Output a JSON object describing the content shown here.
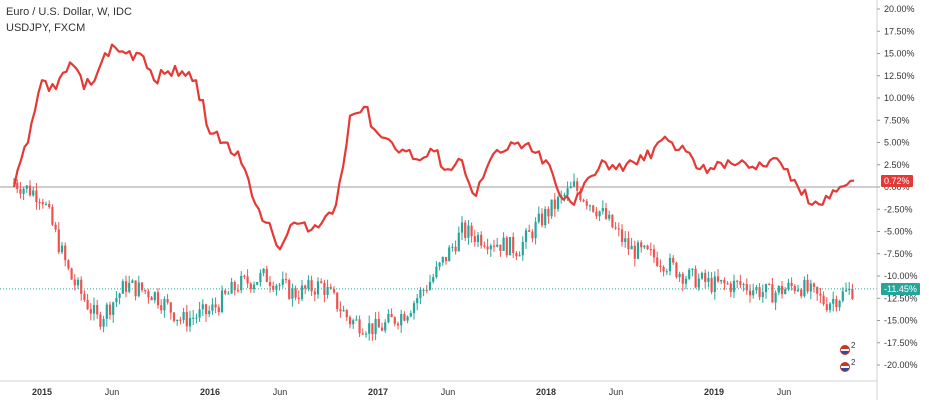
{
  "legend": {
    "series1": "Euro / U.S. Dollar, W, IDC",
    "series2": "USDJPY, FXCM"
  },
  "badges": {
    "series1_value": "0.72%",
    "series2_value": "-11.45%",
    "series1_color": "#e53935",
    "series2_color": "#26a69a"
  },
  "colors": {
    "up": "#26a69a",
    "down": "#ef5350",
    "line": "#e53935",
    "axis_text": "#333333",
    "grid": "#e9e9e9"
  },
  "markers": [
    {
      "icon": "us-flag-icon",
      "count": "2"
    },
    {
      "icon": "us-flag-icon",
      "count": "2"
    }
  ],
  "chart_data": {
    "type": "line",
    "y_axis_labels": [
      "20.00%",
      "17.50%",
      "15.00%",
      "12.50%",
      "10.00%",
      "7.50%",
      "5.00%",
      "2.50%",
      "0.00%",
      "-2.50%",
      "-5.00%",
      "-7.50%",
      "-10.00%",
      "-12.50%",
      "-15.00%",
      "-17.50%",
      "-20.00%"
    ],
    "x_axis_labels": [
      "2015",
      "Jun",
      "2016",
      "Jun",
      "2017",
      "Jun",
      "2018",
      "Jun",
      "2019",
      "Jun"
    ],
    "ylim": [
      -21,
      21
    ],
    "grid": false,
    "series": [
      {
        "name": "Euro / U.S. Dollar, W, IDC",
        "style": "candlestick",
        "x": [
          "2014-11",
          "2015-01",
          "2015-03",
          "2015-05",
          "2015-07",
          "2015-09",
          "2015-11",
          "2016-01",
          "2016-03",
          "2016-05",
          "2016-07",
          "2016-09",
          "2016-11",
          "2017-01",
          "2017-03",
          "2017-05",
          "2017-07",
          "2017-09",
          "2017-11",
          "2018-01",
          "2018-03",
          "2018-05",
          "2018-07",
          "2018-09",
          "2018-11",
          "2019-01",
          "2019-03",
          "2019-05",
          "2019-07",
          "2019-09",
          "2019-11"
        ],
        "values": [
          0.5,
          -1,
          -10,
          -15,
          -11,
          -12,
          -15,
          -14,
          -11,
          -10,
          -12,
          -11,
          -15,
          -16,
          -14,
          -10,
          -5,
          -6,
          -7,
          -3,
          0,
          -3,
          -7,
          -8,
          -10,
          -11,
          -11,
          -12,
          -11,
          -13,
          -11.45
        ]
      },
      {
        "name": "USDJPY, FXCM",
        "style": "line",
        "x": [
          "2014-11",
          "2014-12",
          "2015-01",
          "2015-02",
          "2015-03",
          "2015-04",
          "2015-05",
          "2015-06",
          "2015-07",
          "2015-08",
          "2015-09",
          "2015-10",
          "2015-11",
          "2015-12",
          "2016-01",
          "2016-02",
          "2016-03",
          "2016-04",
          "2016-05",
          "2016-06",
          "2016-07",
          "2016-08",
          "2016-09",
          "2016-10",
          "2016-11",
          "2016-12",
          "2017-01",
          "2017-02",
          "2017-03",
          "2017-04",
          "2017-05",
          "2017-06",
          "2017-07",
          "2017-08",
          "2017-09",
          "2017-10",
          "2017-11",
          "2017-12",
          "2018-01",
          "2018-02",
          "2018-03",
          "2018-04",
          "2018-05",
          "2018-06",
          "2018-07",
          "2018-08",
          "2018-09",
          "2018-10",
          "2018-11",
          "2018-12",
          "2019-01",
          "2019-02",
          "2019-03",
          "2019-04",
          "2019-05",
          "2019-06",
          "2019-07",
          "2019-08",
          "2019-09",
          "2019-10",
          "2019-11"
        ],
        "values": [
          0,
          5,
          12,
          11,
          14,
          11,
          13,
          16,
          15,
          15,
          12,
          13,
          13,
          12,
          6,
          5,
          4,
          -1,
          -4,
          -7,
          -4,
          -5,
          -4,
          -2,
          8,
          9,
          6,
          5,
          4,
          3,
          4,
          2,
          3,
          -1,
          3,
          4,
          5,
          4,
          3,
          -1,
          -2,
          1,
          3,
          2,
          3,
          3,
          5,
          5,
          4,
          2,
          2,
          3,
          3,
          2,
          3,
          2,
          0,
          -2,
          -1,
          0,
          0.72
        ]
      }
    ]
  }
}
